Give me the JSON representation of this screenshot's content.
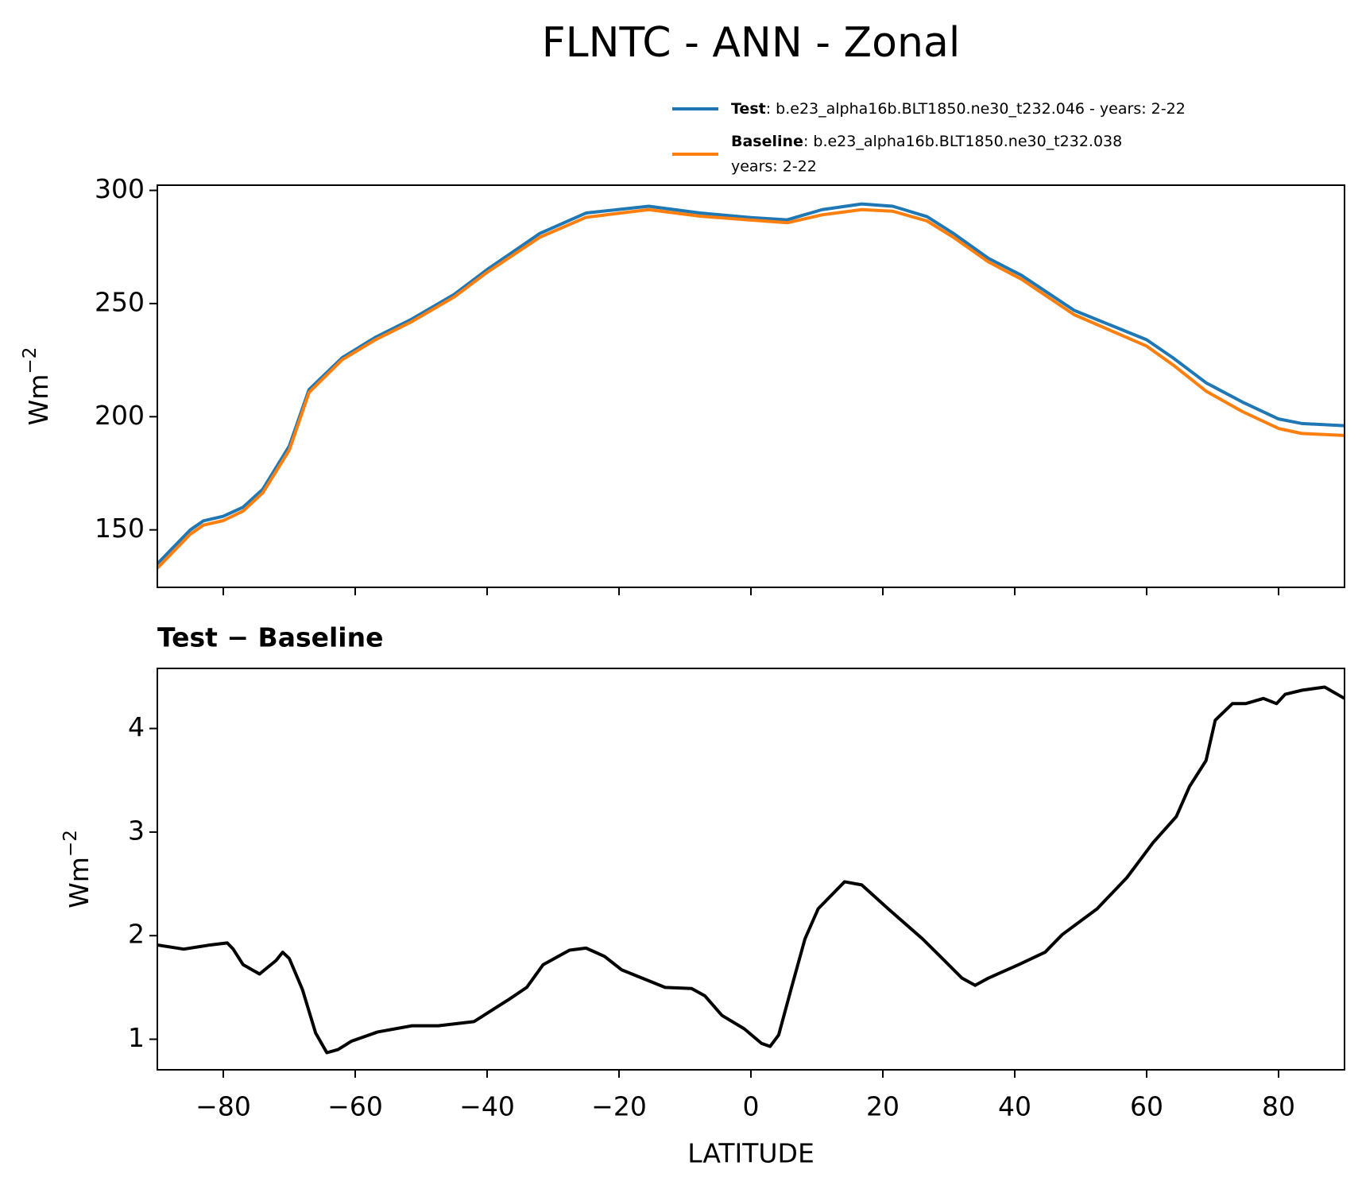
{
  "chart_data": [
    {
      "type": "line",
      "title": "FLNTC - ANN - Zonal",
      "ylabel": "Wm",
      "ylabel_exponent": "−2",
      "x": [
        -90,
        -85,
        -83,
        -80,
        -77,
        -74,
        -70,
        -67,
        -62,
        -57,
        -51.5,
        -45,
        -40,
        -32,
        -25,
        -15.5,
        -7.7,
        0,
        5.5,
        10.8,
        16.8,
        21.5,
        26.7,
        30.7,
        36,
        41,
        49,
        60,
        64,
        69,
        74.5,
        80,
        83.5,
        90
      ],
      "series": [
        {
          "name": "Test",
          "description": ": b.e23_alpha16b.BLT1850.ne30_t232.046 - years: 2-22",
          "color": "#1f77b4",
          "values": [
            135,
            150,
            154,
            156,
            160,
            168,
            187,
            212,
            226,
            235,
            243,
            254,
            265,
            281,
            290,
            293,
            290,
            288,
            287,
            291.5,
            294,
            293,
            288.4,
            281,
            270,
            262.5,
            247,
            234,
            226,
            215,
            206.5,
            199,
            197,
            196
          ]
        },
        {
          "name": "Baseline",
          "description": ": b.e23_alpha16b.BLT1850.ne30_t232.038",
          "description_line2": "years: 2-22",
          "color": "#ff7f0e",
          "values": [
            133.1,
            148.1,
            152.1,
            154.1,
            158.3,
            166.4,
            185.2,
            210.7,
            225.1,
            233.9,
            241.9,
            252.9,
            263.8,
            279.3,
            288.1,
            291.5,
            288.6,
            286.9,
            285.7,
            289.2,
            291.5,
            290.8,
            286.5,
            279.3,
            268.4,
            260.8,
            245.1,
            231.2,
            222.9,
            211.3,
            202.3,
            194.8,
            192.6,
            191.7
          ]
        }
      ],
      "xlim": [
        -90,
        90
      ],
      "xticks": [
        -80,
        -60,
        -40,
        -20,
        0,
        20,
        40,
        60,
        80
      ],
      "ylim": [
        124.6,
        302.3
      ],
      "yticks": [
        150,
        200,
        250,
        300
      ]
    },
    {
      "type": "line",
      "title": "Test − Baseline",
      "ylabel": "Wm",
      "ylabel_exponent": "−2",
      "xlabel": "LATITUDE",
      "x": [
        -90,
        -86,
        -82,
        -79.4,
        -78.5,
        -77,
        -74.5,
        -72,
        -71,
        -70,
        -68,
        -66,
        -64.3,
        -62.6,
        -60.6,
        -56.6,
        -51.4,
        -47.4,
        -42,
        -36.8,
        -34,
        -31.5,
        -27.5,
        -25,
        -22.2,
        -19.6,
        -13,
        -9,
        -7,
        -4.4,
        -1,
        1.6,
        2.9,
        4.2,
        6.2,
        8.2,
        10.2,
        14.2,
        16.8,
        20.8,
        26,
        28.7,
        32,
        34,
        36,
        40.6,
        44.6,
        47.2,
        52.5,
        57,
        61,
        64.5,
        66.5,
        69,
        70.4,
        73,
        75,
        77.7,
        79.7,
        81,
        83.6,
        87,
        90
      ],
      "series": [
        {
          "name": "Test − Baseline",
          "color": "#000000",
          "values": [
            1.91,
            1.87,
            1.91,
            1.93,
            1.87,
            1.72,
            1.63,
            1.76,
            1.84,
            1.78,
            1.48,
            1.06,
            0.87,
            0.9,
            0.98,
            1.07,
            1.13,
            1.13,
            1.17,
            1.38,
            1.5,
            1.72,
            1.86,
            1.88,
            1.8,
            1.67,
            1.5,
            1.49,
            1.42,
            1.23,
            1.1,
            0.96,
            0.93,
            1.04,
            1.51,
            1.97,
            2.26,
            2.52,
            2.49,
            2.26,
            1.97,
            1.8,
            1.59,
            1.52,
            1.59,
            1.72,
            1.84,
            2.01,
            2.26,
            2.56,
            2.9,
            3.15,
            3.44,
            3.69,
            4.08,
            4.24,
            4.24,
            4.29,
            4.24,
            4.33,
            4.37,
            4.4,
            4.29
          ]
        }
      ],
      "xlim": [
        -90,
        90
      ],
      "xticks": [
        {
          "value": -80,
          "label": "−80"
        },
        {
          "value": -60,
          "label": "−60"
        },
        {
          "value": -40,
          "label": "−40"
        },
        {
          "value": -20,
          "label": "−20"
        },
        0,
        20,
        40,
        60,
        80
      ],
      "ylim": [
        0.705,
        4.58
      ],
      "yticks": [
        1,
        2,
        3,
        4
      ]
    }
  ]
}
